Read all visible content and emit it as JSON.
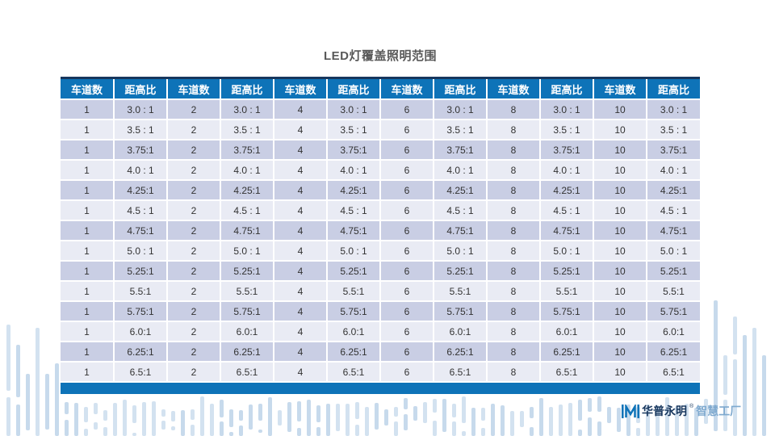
{
  "title": "LED灯覆盖照明范围",
  "table": {
    "column_headers": {
      "lanes": "车道数",
      "ratio": "距高比"
    },
    "lane_counts": [
      1,
      2,
      4,
      6,
      8,
      10
    ],
    "ratios": [
      "3.0 : 1",
      "3.5 : 1",
      "3.75:1",
      "4.0 : 1",
      "4.25:1",
      "4.5 : 1",
      "4.75:1",
      "5.0 : 1",
      "5.25:1",
      "5.5:1",
      "5.75:1",
      "6.0:1",
      "6.25:1",
      "6.5:1"
    ]
  },
  "logo": {
    "brand": "华普永明",
    "mark": "®",
    "tagline": "智慧工厂"
  },
  "colors": {
    "header_blue": "#0e73b8",
    "accent_navy": "#17365d",
    "row_odd": "#c9cee4",
    "row_even": "#e9ebf4",
    "deco_bar_light": "#d3e2f0",
    "deco_bar_mid": "#c7daec",
    "title_gray": "#595959",
    "brand_navy": "#17365d",
    "tagline_blue": "#7ea9cf"
  }
}
